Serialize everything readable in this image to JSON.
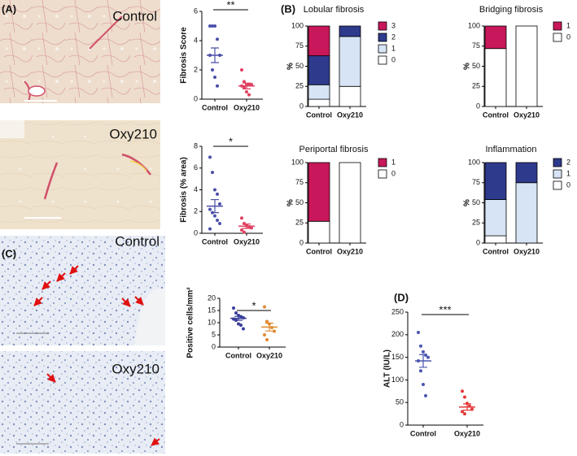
{
  "panels": {
    "labels": [
      "(A)",
      "(B)",
      "(C)",
      "(D)"
    ]
  },
  "images": [
    {
      "label": "Control"
    },
    {
      "label": "Oxy210"
    },
    {
      "label": "Control"
    },
    {
      "label": "Oxy210"
    }
  ],
  "chart_data": [
    {
      "type": "strip",
      "ylabel": "Fibrosis Score",
      "annotation": "**",
      "categories": [
        "Control",
        "Oxy210"
      ],
      "groups": [
        {
          "color": "#4b4fa8",
          "values": [
            5,
            5,
            5,
            4.1,
            3,
            3,
            2,
            1.5,
            0.9
          ],
          "mean": 3,
          "error": 0.5
        },
        {
          "color": "#e04060",
          "values": [
            2,
            1.2,
            1,
            1,
            1,
            0.9,
            0.8,
            0.5,
            0.3
          ],
          "mean": 0.9,
          "error": 0.2
        }
      ],
      "ylim": [
        0,
        6
      ],
      "yticks": [
        0,
        2,
        4,
        6
      ]
    },
    {
      "type": "strip",
      "ylabel": "Fibrosis (% area)",
      "annotation": "*",
      "categories": [
        "Control",
        "Oxy210"
      ],
      "groups": [
        {
          "color": "#4b4fa8",
          "values": [
            7,
            5.6,
            4,
            3.6,
            2.7,
            2.2,
            1.9,
            1.6,
            1.2,
            0.9,
            0.4
          ],
          "mean": 2.5,
          "error": 0.6
        },
        {
          "color": "#e04060",
          "values": [
            1.4,
            0.9,
            0.7,
            0.6,
            0.5,
            0.3,
            0.1
          ],
          "mean": 0.65,
          "error": 0.2
        }
      ],
      "ylim": [
        0,
        8
      ],
      "yticks": [
        0,
        2,
        4,
        6,
        8
      ]
    },
    {
      "type": "stacked_bar",
      "title": "Lobular fibrosis",
      "ylabel": "%",
      "categories": [
        "Control",
        "Oxy210"
      ],
      "series": [
        {
          "name": "3",
          "color": "#c8175a",
          "values": [
            37,
            0
          ]
        },
        {
          "name": "2",
          "color": "#2e3a8c",
          "values": [
            36,
            13
          ]
        },
        {
          "name": "1",
          "color": "#d6e4f5",
          "values": [
            18,
            62
          ]
        },
        {
          "name": "0",
          "color": "#ffffff",
          "values": [
            9,
            25
          ]
        }
      ],
      "ylim": [
        0,
        100
      ],
      "yticks": [
        0,
        25,
        50,
        75,
        100
      ]
    },
    {
      "type": "stacked_bar",
      "title": "Bridging fibrosis",
      "ylabel": "%",
      "categories": [
        "Control",
        "Oxy210"
      ],
      "series": [
        {
          "name": "1",
          "color": "#c8175a",
          "values": [
            28,
            0
          ]
        },
        {
          "name": "0",
          "color": "#ffffff",
          "values": [
            72,
            100
          ]
        }
      ],
      "ylim": [
        0,
        100
      ],
      "yticks": [
        0,
        25,
        50,
        75,
        100
      ]
    },
    {
      "type": "stacked_bar",
      "title": "Periportal fibrosis",
      "ylabel": "%",
      "categories": [
        "Control",
        "Oxy210"
      ],
      "series": [
        {
          "name": "1",
          "color": "#c8175a",
          "values": [
            73,
            0
          ]
        },
        {
          "name": "0",
          "color": "#ffffff",
          "values": [
            27,
            100
          ]
        }
      ],
      "ylim": [
        0,
        100
      ],
      "yticks": [
        0,
        25,
        50,
        75,
        100
      ]
    },
    {
      "type": "stacked_bar",
      "title": "Inflammation",
      "ylabel": "%",
      "categories": [
        "Control",
        "Oxy210"
      ],
      "series": [
        {
          "name": "2",
          "color": "#2e3a8c",
          "values": [
            46,
            25
          ]
        },
        {
          "name": "1",
          "color": "#d6e4f5",
          "values": [
            45,
            75
          ]
        },
        {
          "name": "0",
          "color": "#ffffff",
          "values": [
            9,
            0
          ]
        }
      ],
      "ylim": [
        0,
        100
      ],
      "yticks": [
        0,
        25,
        50,
        75,
        100
      ]
    },
    {
      "type": "strip",
      "ylabel": "Positive cells/mm²",
      "annotation": "*",
      "categories": [
        "Control",
        "Oxy210"
      ],
      "groups": [
        {
          "color": "#3a3f9a",
          "values": [
            16,
            14,
            13,
            12.5,
            12,
            11.5,
            11,
            9.5,
            9,
            7.5
          ],
          "mean": 11.8,
          "error": 0.8
        },
        {
          "color": "#e08a30",
          "values": [
            16.5,
            10.5,
            9.5,
            8,
            6.5,
            5,
            3
          ],
          "mean": 8.2,
          "error": 1.6
        }
      ],
      "ylim": [
        0,
        20
      ],
      "yticks": [
        0,
        5,
        10,
        15,
        20
      ]
    },
    {
      "type": "strip",
      "ylabel": "ALT (IU/L)",
      "annotation": "***",
      "categories": [
        "Control",
        "Oxy210"
      ],
      "groups": [
        {
          "color": "#4a56b0",
          "values": [
            205,
            175,
            162,
            155,
            150,
            142,
            120,
            90,
            65
          ],
          "mean": 142,
          "error": 14
        },
        {
          "color": "#e23a3a",
          "values": [
            75,
            62,
            48,
            42,
            35,
            30,
            25
          ],
          "mean": 40,
          "error": 7
        }
      ],
      "ylim": [
        0,
        250
      ],
      "yticks": [
        0,
        50,
        100,
        150,
        200,
        250
      ]
    }
  ]
}
